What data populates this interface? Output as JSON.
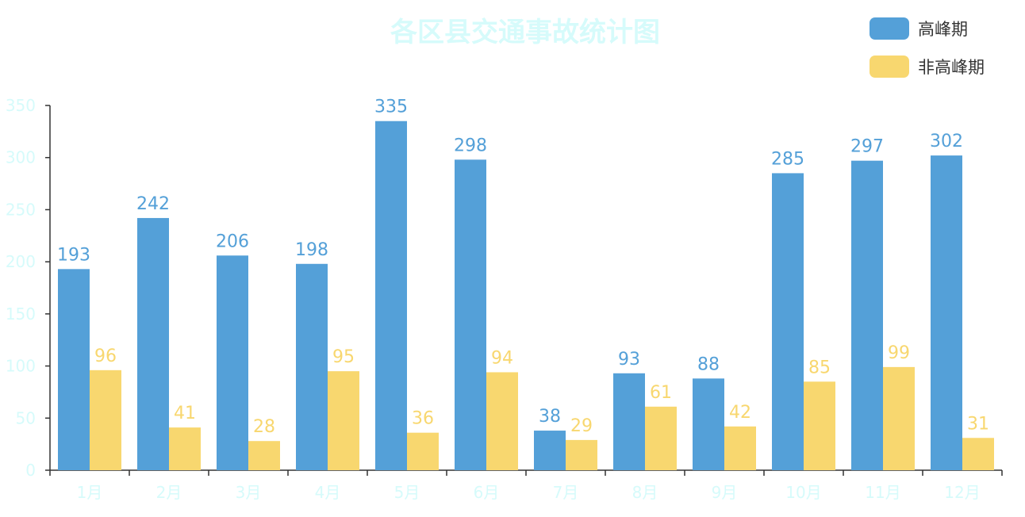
{
  "colors": {
    "title": "#d6fbfb",
    "axis_text": "#d6fbfb",
    "axis_line": "#333333",
    "series": [
      "#54a0d8",
      "#f8d76f"
    ]
  },
  "chart_data": {
    "type": "bar",
    "title": "各区县交通事故统计图",
    "xlabel": "",
    "ylabel": "",
    "ylim": [
      0,
      350
    ],
    "yticks": [
      0,
      50,
      100,
      150,
      200,
      250,
      300,
      350
    ],
    "grid": false,
    "legend_position": "top-right",
    "categories": [
      "1月",
      "2月",
      "3月",
      "4月",
      "5月",
      "6月",
      "7月",
      "8月",
      "9月",
      "10月",
      "11月",
      "12月"
    ],
    "series": [
      {
        "name": "高峰期",
        "values": [
          193,
          242,
          206,
          198,
          335,
          298,
          38,
          93,
          88,
          285,
          297,
          302
        ]
      },
      {
        "name": "非高峰期",
        "values": [
          96,
          41,
          28,
          95,
          36,
          94,
          29,
          61,
          42,
          85,
          99,
          31
        ]
      }
    ]
  }
}
